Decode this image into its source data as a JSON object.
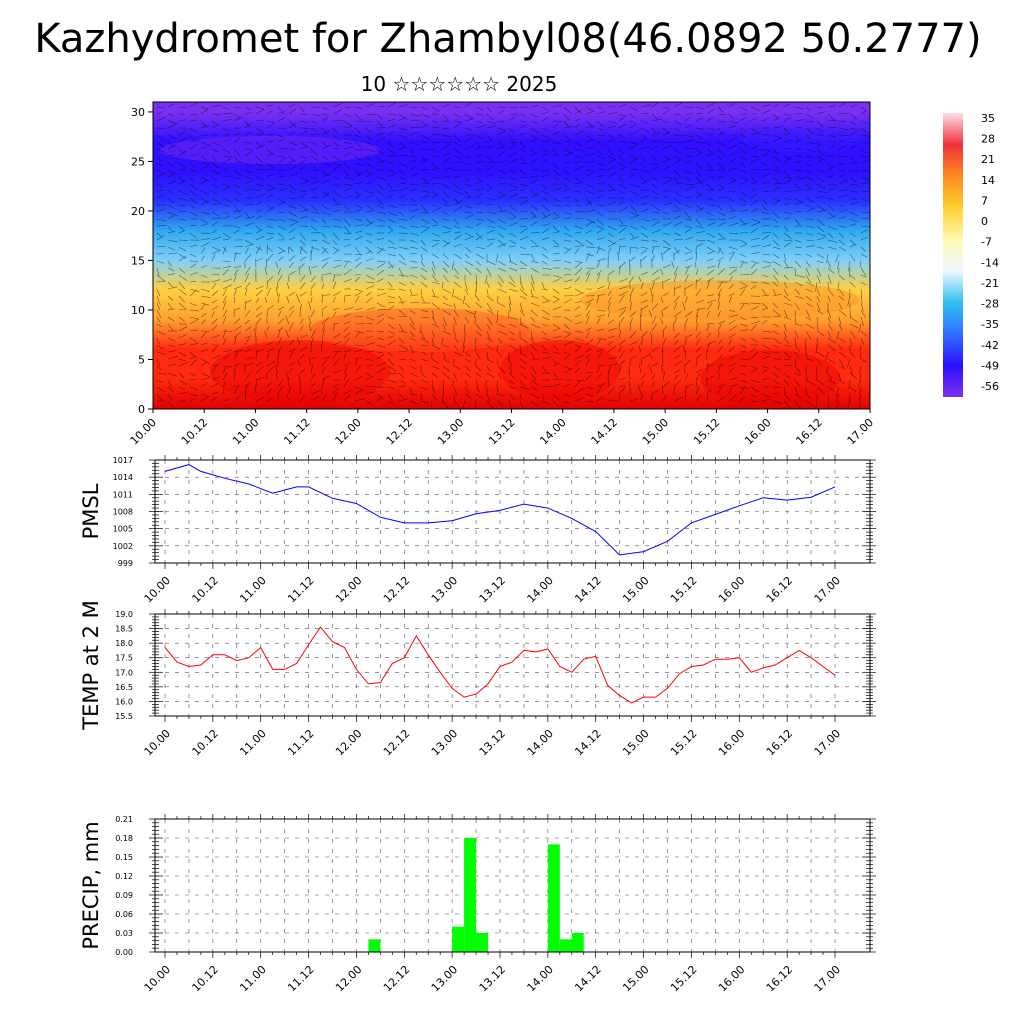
{
  "title": "Kazhydromet for Zhambyl08(46.0892 50.2777)",
  "subtitle": "10 ☆☆☆☆☆☆ 2025",
  "x_tick_labels": [
    "10.00",
    "10.12",
    "11.00",
    "11.12",
    "12.00",
    "12.12",
    "13.00",
    "13.12",
    "14.00",
    "14.12",
    "15.00",
    "15.12",
    "16.00",
    "16.12",
    "17.00"
  ],
  "colorbar": {
    "labels": [
      "35",
      "28",
      "21",
      "14",
      "7",
      "0",
      "-7",
      "-14",
      "-21",
      "-28",
      "-35",
      "-42",
      "-49",
      "-56"
    ],
    "stops": [
      "#ffe0e6",
      "#f0303a",
      "#ff8a20",
      "#ffd030",
      "#fff8b0",
      "#f0f8ff",
      "#30c0f0",
      "#3070ff",
      "#2a10ff",
      "#8030f0"
    ]
  },
  "chart_data": [
    {
      "type": "heatmap",
      "title": "",
      "xlabel": "",
      "ylabel": "",
      "y_ticks": [
        0,
        5,
        10,
        15,
        20,
        25,
        30
      ],
      "ylim": [
        0,
        31
      ],
      "xlim": [
        0,
        168
      ],
      "rows_description_values": {
        "levels": [
          0,
          3,
          6,
          9,
          12,
          15,
          18,
          21,
          24,
          27,
          30
        ],
        "temperature_approx": [
          25,
          23,
          20,
          12,
          7,
          -10,
          -28,
          -45,
          -52,
          -52,
          -56
        ]
      }
    },
    {
      "type": "line",
      "ylabel": "PMSL",
      "ylim": [
        999,
        1017
      ],
      "y_ticks": [
        999,
        1002,
        1005,
        1008,
        1011,
        1014,
        1017
      ],
      "grid": true,
      "line_color": "#0000ff",
      "x_hours": [
        0,
        6,
        9,
        15,
        21,
        27,
        33,
        36,
        42,
        48,
        54,
        60,
        66,
        72,
        78,
        84,
        90,
        96,
        102,
        108,
        114,
        120,
        126,
        132,
        138,
        144,
        150,
        156,
        162,
        168
      ],
      "values": [
        1015,
        1016.2,
        1015,
        1013.8,
        1012.8,
        1011.2,
        1012.3,
        1012.3,
        1010.3,
        1009.4,
        1007,
        1006,
        1006,
        1006.4,
        1007.6,
        1008.2,
        1009.3,
        1008.6,
        1006.8,
        1004.5,
        1000.4,
        1001,
        1002.8,
        1006,
        1007.5,
        1009,
        1010.4,
        1010,
        1010.5,
        1012.3
      ]
    },
    {
      "type": "line",
      "ylabel": "TEMP at 2 M",
      "ylim": [
        15.5,
        19.0
      ],
      "y_ticks": [
        15.5,
        16.0,
        16.5,
        17.0,
        17.5,
        18.0,
        18.5,
        19.0
      ],
      "grid": true,
      "line_color": "#ff0000",
      "x_hours": [
        0,
        3,
        6,
        9,
        12,
        15,
        18,
        21,
        24,
        27,
        30,
        33,
        36,
        39,
        42,
        45,
        48,
        51,
        54,
        57,
        60,
        63,
        66,
        69,
        72,
        75,
        78,
        81,
        84,
        87,
        90,
        93,
        96,
        99,
        102,
        105,
        108,
        111,
        114,
        117,
        120,
        123,
        126,
        129,
        132,
        135,
        138,
        141,
        144,
        147,
        150,
        153,
        156,
        159,
        162,
        165,
        168
      ],
      "values": [
        17.85,
        17.35,
        17.2,
        17.25,
        17.6,
        17.6,
        17.4,
        17.5,
        17.85,
        17.1,
        17.1,
        17.3,
        17.95,
        18.55,
        18.05,
        17.85,
        17.1,
        16.6,
        16.65,
        17.3,
        17.5,
        18.25,
        17.6,
        17.0,
        16.45,
        16.15,
        16.25,
        16.6,
        17.2,
        17.35,
        17.75,
        17.7,
        17.8,
        17.2,
        17.0,
        17.45,
        17.55,
        16.55,
        16.2,
        15.95,
        16.15,
        16.15,
        16.45,
        16.95,
        17.2,
        17.25,
        17.45,
        17.45,
        17.5,
        17.0,
        17.15,
        17.25,
        17.5,
        17.75,
        17.5,
        17.2,
        16.9
      ]
    },
    {
      "type": "bar",
      "ylabel": "PRECIP, mm",
      "ylim": [
        0,
        0.21
      ],
      "y_ticks": [
        0.0,
        0.03,
        0.06,
        0.09,
        0.12,
        0.15,
        0.18,
        0.21
      ],
      "grid": true,
      "bar_color": "#00ff00",
      "x_hours": [
        51,
        72,
        75,
        78,
        96,
        99,
        102
      ],
      "values": [
        0.02,
        0.04,
        0.18,
        0.03,
        0.17,
        0.02,
        0.03
      ]
    }
  ]
}
